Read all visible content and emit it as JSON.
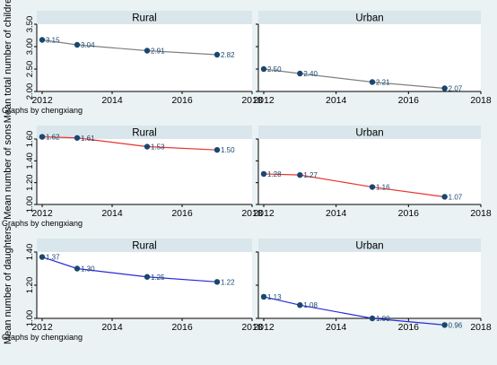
{
  "chart_data": [
    {
      "type": "line",
      "ylabel": "Mean total number of children",
      "note": "Graphs by chengxiang",
      "line_color": "#808080",
      "ylim": [
        2.0,
        3.5
      ],
      "yticks": [
        "2.00",
        "2.50",
        "3.00",
        "3.50"
      ],
      "xlim": [
        2012,
        2018
      ],
      "xticks": [
        "2012",
        "2014",
        "2016",
        "2018"
      ],
      "panels": [
        {
          "title": "Rural",
          "x": [
            2012,
            2013,
            2015,
            2017
          ],
          "values": [
            3.15,
            3.04,
            2.91,
            2.82
          ],
          "labels": [
            "3.15",
            "3.04",
            "2.91",
            "2.82"
          ]
        },
        {
          "title": "Urban",
          "x": [
            2012,
            2013,
            2015,
            2017
          ],
          "values": [
            2.5,
            2.4,
            2.21,
            2.07
          ],
          "labels": [
            "2.50",
            "2.40",
            "2.21",
            "2.07"
          ]
        }
      ]
    },
    {
      "type": "line",
      "ylabel": "Mean number of sons",
      "note": "Graphs by chengxiang",
      "line_color": "#e8322e",
      "ylim": [
        1.0,
        1.6
      ],
      "yticks": [
        "1.00",
        "1.20",
        "1.40",
        "1.60"
      ],
      "xlim": [
        2012,
        2018
      ],
      "xticks": [
        "2012",
        "2014",
        "2016",
        "2018"
      ],
      "panels": [
        {
          "title": "Rural",
          "x": [
            2012,
            2013,
            2015,
            2017
          ],
          "values": [
            1.62,
            1.61,
            1.53,
            1.5
          ],
          "labels": [
            "1.62",
            "1.61",
            "1.53",
            "1.50"
          ]
        },
        {
          "title": "Urban",
          "x": [
            2012,
            2013,
            2015,
            2017
          ],
          "values": [
            1.28,
            1.27,
            1.16,
            1.07
          ],
          "labels": [
            "1.28",
            "1.27",
            "1.16",
            "1.07"
          ]
        }
      ]
    },
    {
      "type": "line",
      "ylabel": "Mean number of daughters",
      "note": "Graphs by chengxiang",
      "line_color": "#2a2ad6",
      "ylim": [
        1.0,
        1.4
      ],
      "yticks": [
        "1.00",
        "1.20",
        "1.40"
      ],
      "xlim": [
        2012,
        2018
      ],
      "xticks": [
        "2012",
        "2014",
        "2016",
        "2018"
      ],
      "panels": [
        {
          "title": "Rural",
          "x": [
            2012,
            2013,
            2015,
            2017
          ],
          "values": [
            1.37,
            1.3,
            1.25,
            1.22
          ],
          "labels": [
            "1.37",
            "1.30",
            "1.25",
            "1.22"
          ]
        },
        {
          "title": "Urban",
          "x": [
            2012,
            2013,
            2015,
            2017
          ],
          "values": [
            1.13,
            1.08,
            1.0,
            0.96
          ],
          "labels": [
            "1.13",
            "1.08",
            "1.00",
            "0.96"
          ]
        }
      ]
    }
  ],
  "colors": {
    "background": "#eaf2f3",
    "plot_background": "#ffffff",
    "panel_header": "#d9e6eb",
    "marker": "#1a476f",
    "label": "#1a476f",
    "text": "#000000"
  }
}
